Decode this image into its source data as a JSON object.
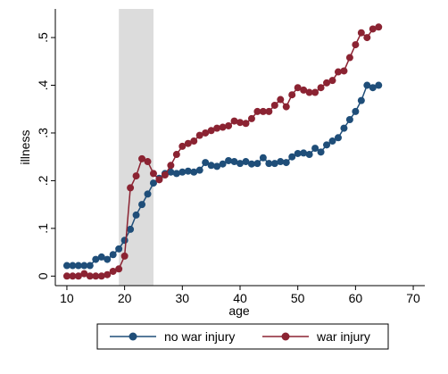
{
  "chart_data": {
    "type": "line",
    "xlabel": "age",
    "ylabel": "illness",
    "xlim": [
      8,
      72
    ],
    "ylim": [
      -0.02,
      0.56
    ],
    "x_ticks": [
      10,
      20,
      30,
      40,
      50,
      60,
      70
    ],
    "x_tick_labels": [
      "10",
      "20",
      "30",
      "40",
      "50",
      "60",
      "70"
    ],
    "y_ticks": [
      0,
      0.1,
      0.2,
      0.3,
      0.4,
      0.5
    ],
    "y_tick_labels": [
      "0",
      ".1",
      ".2",
      ".3",
      ".4",
      ".5"
    ],
    "shaded_region": [
      19,
      25
    ],
    "shaded_color": "#dcdcdc",
    "grid": false,
    "legend_position": "bottom",
    "series": [
      {
        "name": "no war injury",
        "color": "#1f4e79",
        "x": [
          10,
          11,
          12,
          13,
          14,
          15,
          16,
          17,
          18,
          19,
          20,
          21,
          22,
          23,
          24,
          25,
          26,
          27,
          28,
          29,
          30,
          31,
          32,
          33,
          34,
          35,
          36,
          37,
          38,
          39,
          40,
          41,
          42,
          43,
          44,
          45,
          46,
          47,
          48,
          49,
          50,
          51,
          52,
          53,
          54,
          55,
          56,
          57,
          58,
          59,
          60,
          61,
          62,
          63,
          64
        ],
        "values": [
          0.022,
          0.022,
          0.022,
          0.022,
          0.022,
          0.035,
          0.04,
          0.035,
          0.045,
          0.057,
          0.075,
          0.098,
          0.128,
          0.15,
          0.172,
          0.195,
          0.205,
          0.215,
          0.218,
          0.215,
          0.218,
          0.22,
          0.218,
          0.222,
          0.238,
          0.232,
          0.23,
          0.235,
          0.242,
          0.24,
          0.236,
          0.24,
          0.235,
          0.236,
          0.248,
          0.236,
          0.236,
          0.24,
          0.238,
          0.25,
          0.257,
          0.258,
          0.255,
          0.268,
          0.26,
          0.275,
          0.283,
          0.29,
          0.31,
          0.328,
          0.345,
          0.368,
          0.4,
          0.395,
          0.4
        ]
      },
      {
        "name": "war injury",
        "color": "#8b2332",
        "x": [
          10,
          11,
          12,
          13,
          14,
          15,
          16,
          17,
          18,
          19,
          20,
          21,
          22,
          23,
          24,
          25,
          26,
          27,
          28,
          29,
          30,
          31,
          32,
          33,
          34,
          35,
          36,
          37,
          38,
          39,
          40,
          41,
          42,
          43,
          44,
          45,
          46,
          47,
          48,
          49,
          50,
          51,
          52,
          53,
          54,
          55,
          56,
          57,
          58,
          59,
          60,
          61,
          62,
          63,
          64
        ],
        "values": [
          0.0,
          0.0,
          0.0,
          0.005,
          0.0,
          0.0,
          0.0,
          0.003,
          0.01,
          0.015,
          0.042,
          0.185,
          0.21,
          0.246,
          0.24,
          0.215,
          0.202,
          0.212,
          0.232,
          0.255,
          0.272,
          0.278,
          0.283,
          0.295,
          0.3,
          0.305,
          0.31,
          0.312,
          0.315,
          0.325,
          0.322,
          0.32,
          0.33,
          0.345,
          0.345,
          0.345,
          0.358,
          0.37,
          0.355,
          0.38,
          0.395,
          0.39,
          0.385,
          0.385,
          0.395,
          0.405,
          0.41,
          0.428,
          0.43,
          0.458,
          0.485,
          0.51,
          0.5,
          0.518,
          0.522
        ]
      }
    ]
  }
}
